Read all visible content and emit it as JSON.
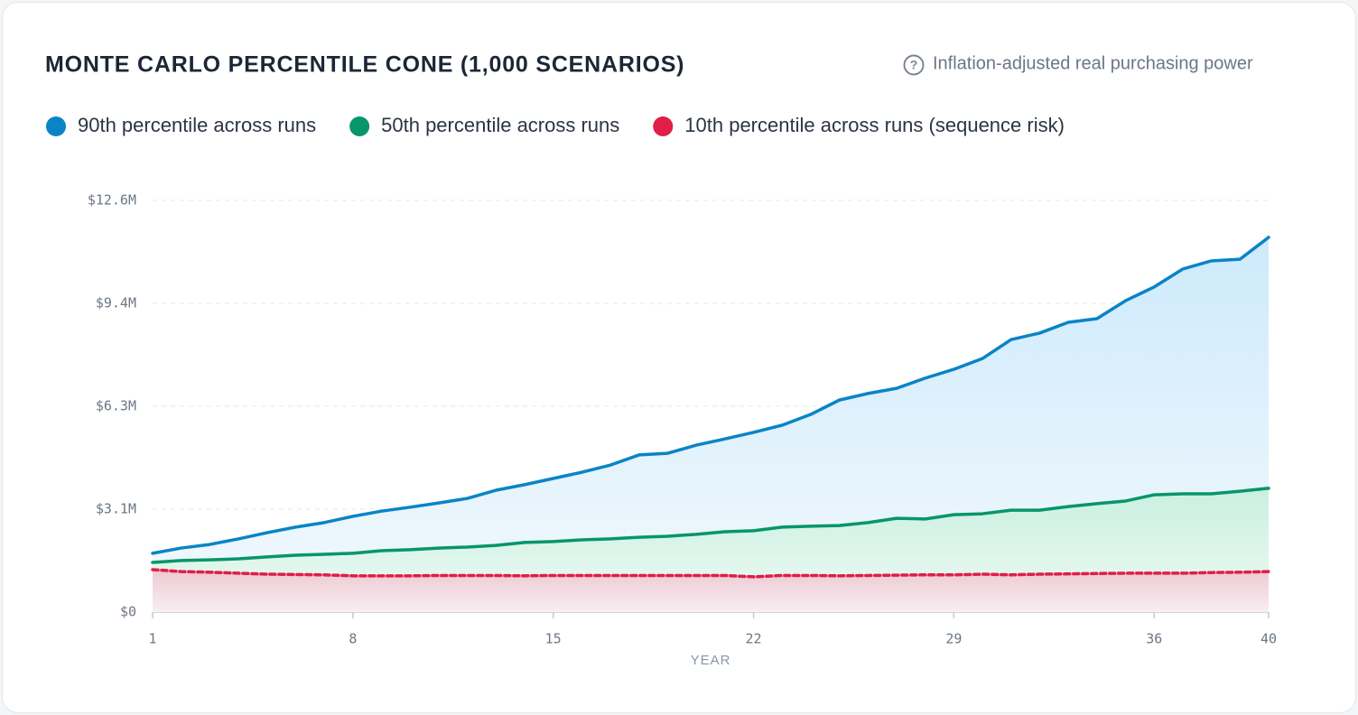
{
  "chart_data": {
    "type": "area",
    "title": "MONTE CARLO PERCENTILE CONE (1,000 SCENARIOS)",
    "subtitle": "Inflation-adjusted real purchasing power",
    "xlabel": "YEAR",
    "x": [
      1,
      2,
      3,
      4,
      5,
      6,
      7,
      8,
      9,
      10,
      11,
      12,
      13,
      14,
      15,
      16,
      17,
      18,
      19,
      20,
      21,
      22,
      23,
      24,
      25,
      26,
      27,
      28,
      29,
      30,
      31,
      32,
      33,
      34,
      35,
      36,
      37,
      38,
      39,
      40
    ],
    "xlim": [
      1,
      40
    ],
    "xticks": [
      1,
      8,
      15,
      22,
      29,
      36,
      40
    ],
    "ylim": [
      0,
      12.6
    ],
    "yticks": [
      {
        "value": 0,
        "label": "$0"
      },
      {
        "value": 3.15,
        "label": "$3.1M"
      },
      {
        "value": 6.3,
        "label": "$6.3M"
      },
      {
        "value": 9.45,
        "label": "$9.4M"
      },
      {
        "value": 12.6,
        "label": "$12.6M"
      }
    ],
    "grid": true,
    "series": [
      {
        "name": "90th percentile across runs",
        "color": "#0a84c6",
        "values": [
          1.8,
          1.96,
          2.07,
          2.24,
          2.43,
          2.6,
          2.74,
          2.93,
          3.09,
          3.21,
          3.34,
          3.48,
          3.73,
          3.9,
          4.09,
          4.28,
          4.5,
          4.81,
          4.86,
          5.11,
          5.3,
          5.5,
          5.72,
          6.05,
          6.49,
          6.69,
          6.85,
          7.16,
          7.43,
          7.76,
          8.34,
          8.54,
          8.87,
          8.98,
          9.53,
          9.95,
          10.5,
          10.75,
          10.8,
          11.47
        ]
      },
      {
        "name": "50th percentile across runs",
        "color": "#079669",
        "values": [
          1.52,
          1.58,
          1.6,
          1.63,
          1.69,
          1.74,
          1.77,
          1.8,
          1.88,
          1.91,
          1.96,
          1.99,
          2.04,
          2.13,
          2.16,
          2.21,
          2.24,
          2.29,
          2.32,
          2.38,
          2.46,
          2.49,
          2.6,
          2.63,
          2.65,
          2.74,
          2.87,
          2.85,
          2.98,
          3.01,
          3.12,
          3.12,
          3.23,
          3.32,
          3.4,
          3.59,
          3.62,
          3.62,
          3.7,
          3.79
        ]
      },
      {
        "name": "10th percentile across runs (sequence risk)",
        "color": "#e11d48",
        "dashed": true,
        "values": [
          1.3,
          1.24,
          1.22,
          1.19,
          1.16,
          1.15,
          1.14,
          1.11,
          1.11,
          1.11,
          1.12,
          1.12,
          1.12,
          1.11,
          1.12,
          1.12,
          1.12,
          1.12,
          1.12,
          1.12,
          1.12,
          1.08,
          1.12,
          1.12,
          1.11,
          1.12,
          1.13,
          1.14,
          1.14,
          1.16,
          1.14,
          1.16,
          1.17,
          1.18,
          1.19,
          1.19,
          1.19,
          1.21,
          1.22,
          1.24
        ]
      }
    ]
  }
}
